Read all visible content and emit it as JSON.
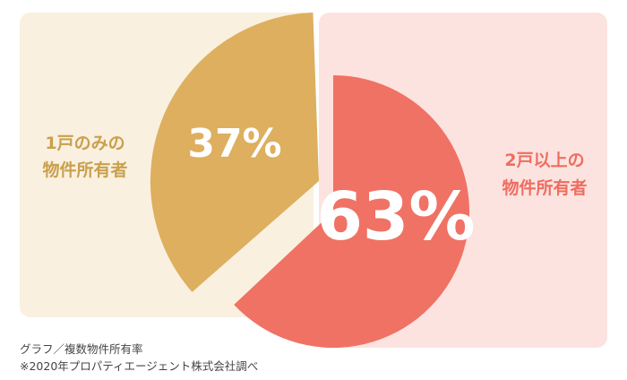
{
  "chart_data": {
    "type": "pie",
    "slices": [
      {
        "label_lines": [
          "1戸のみの",
          "物件所有者"
        ],
        "value": 37,
        "value_label": "37%",
        "color": "#DDAF5E",
        "panel_color": "#F9F0E0",
        "label_color": "#C9A04E"
      },
      {
        "label_lines": [
          "2戸以上の",
          "物件所有者"
        ],
        "value": 63,
        "value_label": "63%",
        "color": "#F07264",
        "panel_color": "#FCE3E0",
        "label_color": "#EE6E60"
      }
    ],
    "notes": [
      "グラフ／複数物件所有率",
      "※2020年プロパティエージェント株式会社調べ"
    ]
  }
}
